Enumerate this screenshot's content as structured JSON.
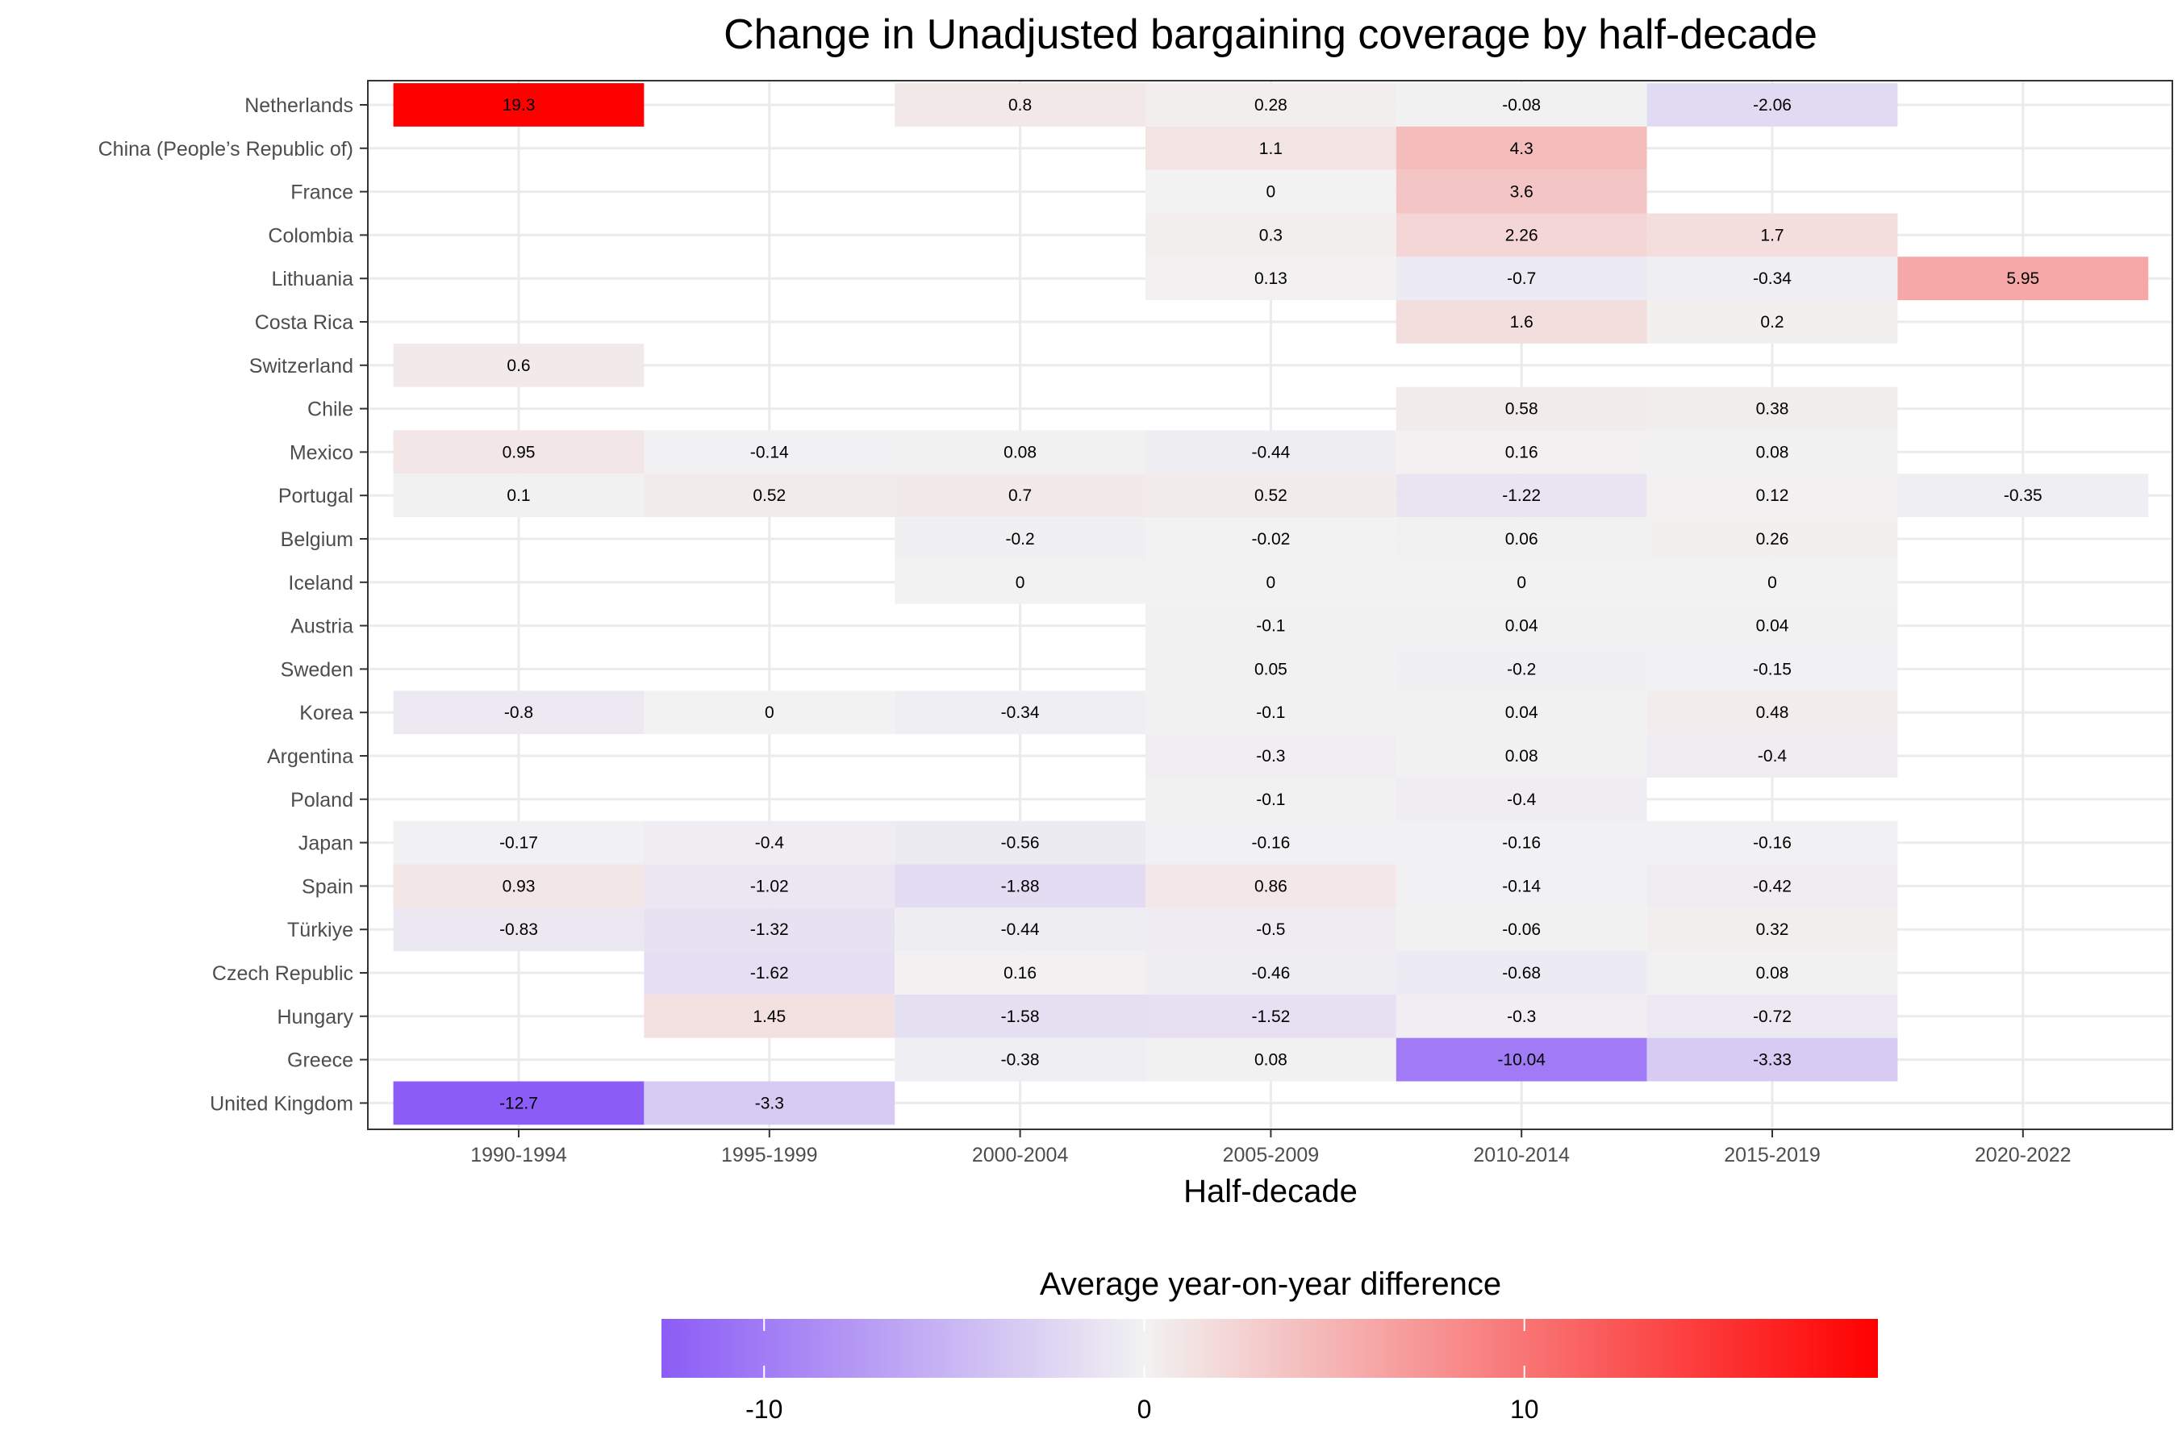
{
  "chart_data": {
    "type": "heatmap",
    "title": "Change in Unadjusted bargaining coverage by half-decade",
    "xlabel": "Half-decade",
    "ylabel": "",
    "legend_title": "Average year-on-year difference",
    "legend_placement": "bottom",
    "color_scale": {
      "low": "#8B5CF6",
      "mid": "#F2F2F2",
      "high": "#FF0000",
      "min": -12.7,
      "max": 19.3,
      "ticks": [
        -10,
        0,
        10
      ]
    },
    "grid": true,
    "columns": [
      "1990-1994",
      "1995-1999",
      "2000-2004",
      "2005-2009",
      "2010-2014",
      "2015-2019",
      "2020-2022"
    ],
    "rows": [
      "Netherlands",
      "China (People’s Republic of)",
      "France",
      "Colombia",
      "Lithuania",
      "Costa Rica",
      "Switzerland",
      "Chile",
      "Mexico",
      "Portugal",
      "Belgium",
      "Iceland",
      "Austria",
      "Sweden",
      "Korea",
      "Argentina",
      "Poland",
      "Japan",
      "Spain",
      "Türkiye",
      "Czech Republic",
      "Hungary",
      "Greece",
      "United Kingdom"
    ],
    "cells": [
      {
        "row": "Netherlands",
        "col": "1990-1994",
        "value": 19.3,
        "label": "19.3"
      },
      {
        "row": "Netherlands",
        "col": "2000-2004",
        "value": 0.8,
        "label": "0.8"
      },
      {
        "row": "Netherlands",
        "col": "2005-2009",
        "value": 0.28,
        "label": "0.28"
      },
      {
        "row": "Netherlands",
        "col": "2010-2014",
        "value": -0.08,
        "label": "-0.08"
      },
      {
        "row": "Netherlands",
        "col": "2015-2019",
        "value": -2.06,
        "label": "-2.06"
      },
      {
        "row": "China (People’s Republic of)",
        "col": "2005-2009",
        "value": 1.1,
        "label": "1.1"
      },
      {
        "row": "China (People’s Republic of)",
        "col": "2010-2014",
        "value": 4.3,
        "label": "4.3"
      },
      {
        "row": "France",
        "col": "2005-2009",
        "value": 0,
        "label": "0"
      },
      {
        "row": "France",
        "col": "2010-2014",
        "value": 3.6,
        "label": "3.6"
      },
      {
        "row": "Colombia",
        "col": "2005-2009",
        "value": 0.3,
        "label": "0.3"
      },
      {
        "row": "Colombia",
        "col": "2010-2014",
        "value": 2.26,
        "label": "2.26"
      },
      {
        "row": "Colombia",
        "col": "2015-2019",
        "value": 1.7,
        "label": "1.7"
      },
      {
        "row": "Lithuania",
        "col": "2005-2009",
        "value": 0.13,
        "label": "0.13"
      },
      {
        "row": "Lithuania",
        "col": "2010-2014",
        "value": -0.7,
        "label": "-0.7"
      },
      {
        "row": "Lithuania",
        "col": "2015-2019",
        "value": -0.34,
        "label": "-0.34"
      },
      {
        "row": "Lithuania",
        "col": "2020-2022",
        "value": 5.95,
        "label": "5.95"
      },
      {
        "row": "Costa Rica",
        "col": "2010-2014",
        "value": 1.6,
        "label": "1.6"
      },
      {
        "row": "Costa Rica",
        "col": "2015-2019",
        "value": 0.2,
        "label": "0.2"
      },
      {
        "row": "Switzerland",
        "col": "1990-1994",
        "value": 0.6,
        "label": "0.6"
      },
      {
        "row": "Chile",
        "col": "2010-2014",
        "value": 0.58,
        "label": "0.58"
      },
      {
        "row": "Chile",
        "col": "2015-2019",
        "value": 0.38,
        "label": "0.38"
      },
      {
        "row": "Mexico",
        "col": "1990-1994",
        "value": 0.95,
        "label": "0.95"
      },
      {
        "row": "Mexico",
        "col": "1995-1999",
        "value": -0.14,
        "label": "-0.14"
      },
      {
        "row": "Mexico",
        "col": "2000-2004",
        "value": 0.08,
        "label": "0.08"
      },
      {
        "row": "Mexico",
        "col": "2005-2009",
        "value": -0.44,
        "label": "-0.44"
      },
      {
        "row": "Mexico",
        "col": "2010-2014",
        "value": 0.16,
        "label": "0.16"
      },
      {
        "row": "Mexico",
        "col": "2015-2019",
        "value": 0.08,
        "label": "0.08"
      },
      {
        "row": "Portugal",
        "col": "1990-1994",
        "value": 0.1,
        "label": "0.1"
      },
      {
        "row": "Portugal",
        "col": "1995-1999",
        "value": 0.52,
        "label": "0.52"
      },
      {
        "row": "Portugal",
        "col": "2000-2004",
        "value": 0.7,
        "label": "0.7"
      },
      {
        "row": "Portugal",
        "col": "2005-2009",
        "value": 0.52,
        "label": "0.52"
      },
      {
        "row": "Portugal",
        "col": "2010-2014",
        "value": -1.22,
        "label": "-1.22"
      },
      {
        "row": "Portugal",
        "col": "2015-2019",
        "value": 0.12,
        "label": "0.12"
      },
      {
        "row": "Portugal",
        "col": "2020-2022",
        "value": -0.35,
        "label": "-0.35"
      },
      {
        "row": "Belgium",
        "col": "2000-2004",
        "value": -0.2,
        "label": "-0.2"
      },
      {
        "row": "Belgium",
        "col": "2005-2009",
        "value": -0.02,
        "label": "-0.02"
      },
      {
        "row": "Belgium",
        "col": "2010-2014",
        "value": 0.06,
        "label": "0.06"
      },
      {
        "row": "Belgium",
        "col": "2015-2019",
        "value": 0.26,
        "label": "0.26"
      },
      {
        "row": "Iceland",
        "col": "2000-2004",
        "value": 0,
        "label": "0"
      },
      {
        "row": "Iceland",
        "col": "2005-2009",
        "value": 0,
        "label": "0"
      },
      {
        "row": "Iceland",
        "col": "2010-2014",
        "value": 0,
        "label": "0"
      },
      {
        "row": "Iceland",
        "col": "2015-2019",
        "value": 0,
        "label": "0"
      },
      {
        "row": "Austria",
        "col": "2005-2009",
        "value": -0.1,
        "label": "-0.1"
      },
      {
        "row": "Austria",
        "col": "2010-2014",
        "value": 0.04,
        "label": "0.04"
      },
      {
        "row": "Austria",
        "col": "2015-2019",
        "value": 0.04,
        "label": "0.04"
      },
      {
        "row": "Sweden",
        "col": "2005-2009",
        "value": 0.05,
        "label": "0.05"
      },
      {
        "row": "Sweden",
        "col": "2010-2014",
        "value": -0.2,
        "label": "-0.2"
      },
      {
        "row": "Sweden",
        "col": "2015-2019",
        "value": -0.15,
        "label": "-0.15"
      },
      {
        "row": "Korea",
        "col": "1990-1994",
        "value": -0.8,
        "label": "-0.8"
      },
      {
        "row": "Korea",
        "col": "1995-1999",
        "value": 0,
        "label": "0"
      },
      {
        "row": "Korea",
        "col": "2000-2004",
        "value": -0.34,
        "label": "-0.34"
      },
      {
        "row": "Korea",
        "col": "2005-2009",
        "value": -0.1,
        "label": "-0.1"
      },
      {
        "row": "Korea",
        "col": "2010-2014",
        "value": 0.04,
        "label": "0.04"
      },
      {
        "row": "Korea",
        "col": "2015-2019",
        "value": 0.48,
        "label": "0.48"
      },
      {
        "row": "Argentina",
        "col": "2005-2009",
        "value": -0.3,
        "label": "-0.3"
      },
      {
        "row": "Argentina",
        "col": "2010-2014",
        "value": 0.08,
        "label": "0.08"
      },
      {
        "row": "Argentina",
        "col": "2015-2019",
        "value": -0.4,
        "label": "-0.4"
      },
      {
        "row": "Poland",
        "col": "2005-2009",
        "value": -0.1,
        "label": "-0.1"
      },
      {
        "row": "Poland",
        "col": "2010-2014",
        "value": -0.4,
        "label": "-0.4"
      },
      {
        "row": "Japan",
        "col": "1990-1994",
        "value": -0.17,
        "label": "-0.17"
      },
      {
        "row": "Japan",
        "col": "1995-1999",
        "value": -0.4,
        "label": "-0.4"
      },
      {
        "row": "Japan",
        "col": "2000-2004",
        "value": -0.56,
        "label": "-0.56"
      },
      {
        "row": "Japan",
        "col": "2005-2009",
        "value": -0.16,
        "label": "-0.16"
      },
      {
        "row": "Japan",
        "col": "2010-2014",
        "value": -0.16,
        "label": "-0.16"
      },
      {
        "row": "Japan",
        "col": "2015-2019",
        "value": -0.16,
        "label": "-0.16"
      },
      {
        "row": "Spain",
        "col": "1990-1994",
        "value": 0.93,
        "label": "0.93"
      },
      {
        "row": "Spain",
        "col": "1995-1999",
        "value": -1.02,
        "label": "-1.02"
      },
      {
        "row": "Spain",
        "col": "2000-2004",
        "value": -1.88,
        "label": "-1.88"
      },
      {
        "row": "Spain",
        "col": "2005-2009",
        "value": 0.86,
        "label": "0.86"
      },
      {
        "row": "Spain",
        "col": "2010-2014",
        "value": -0.14,
        "label": "-0.14"
      },
      {
        "row": "Spain",
        "col": "2015-2019",
        "value": -0.42,
        "label": "-0.42"
      },
      {
        "row": "Türkiye",
        "col": "1990-1994",
        "value": -0.83,
        "label": "-0.83"
      },
      {
        "row": "Türkiye",
        "col": "1995-1999",
        "value": -1.32,
        "label": "-1.32"
      },
      {
        "row": "Türkiye",
        "col": "2000-2004",
        "value": -0.44,
        "label": "-0.44"
      },
      {
        "row": "Türkiye",
        "col": "2005-2009",
        "value": -0.5,
        "label": "-0.5"
      },
      {
        "row": "Türkiye",
        "col": "2010-2014",
        "value": -0.06,
        "label": "-0.06"
      },
      {
        "row": "Türkiye",
        "col": "2015-2019",
        "value": 0.32,
        "label": "0.32"
      },
      {
        "row": "Czech Republic",
        "col": "1995-1999",
        "value": -1.62,
        "label": "-1.62"
      },
      {
        "row": "Czech Republic",
        "col": "2000-2004",
        "value": 0.16,
        "label": "0.16"
      },
      {
        "row": "Czech Republic",
        "col": "2005-2009",
        "value": -0.46,
        "label": "-0.46"
      },
      {
        "row": "Czech Republic",
        "col": "2010-2014",
        "value": -0.68,
        "label": "-0.68"
      },
      {
        "row": "Czech Republic",
        "col": "2015-2019",
        "value": 0.08,
        "label": "0.08"
      },
      {
        "row": "Hungary",
        "col": "1995-1999",
        "value": 1.45,
        "label": "1.45"
      },
      {
        "row": "Hungary",
        "col": "2000-2004",
        "value": -1.58,
        "label": "-1.58"
      },
      {
        "row": "Hungary",
        "col": "2005-2009",
        "value": -1.52,
        "label": "-1.52"
      },
      {
        "row": "Hungary",
        "col": "2010-2014",
        "value": -0.3,
        "label": "-0.3"
      },
      {
        "row": "Hungary",
        "col": "2015-2019",
        "value": -0.72,
        "label": "-0.72"
      },
      {
        "row": "Greece",
        "col": "2000-2004",
        "value": -0.38,
        "label": "-0.38"
      },
      {
        "row": "Greece",
        "col": "2005-2009",
        "value": 0.08,
        "label": "0.08"
      },
      {
        "row": "Greece",
        "col": "2010-2014",
        "value": -10.04,
        "label": "-10.04"
      },
      {
        "row": "Greece",
        "col": "2015-2019",
        "value": -3.33,
        "label": "-3.33"
      },
      {
        "row": "United Kingdom",
        "col": "1990-1994",
        "value": -12.7,
        "label": "-12.7"
      },
      {
        "row": "United Kingdom",
        "col": "1995-1999",
        "value": -3.3,
        "label": "-3.3"
      }
    ]
  }
}
